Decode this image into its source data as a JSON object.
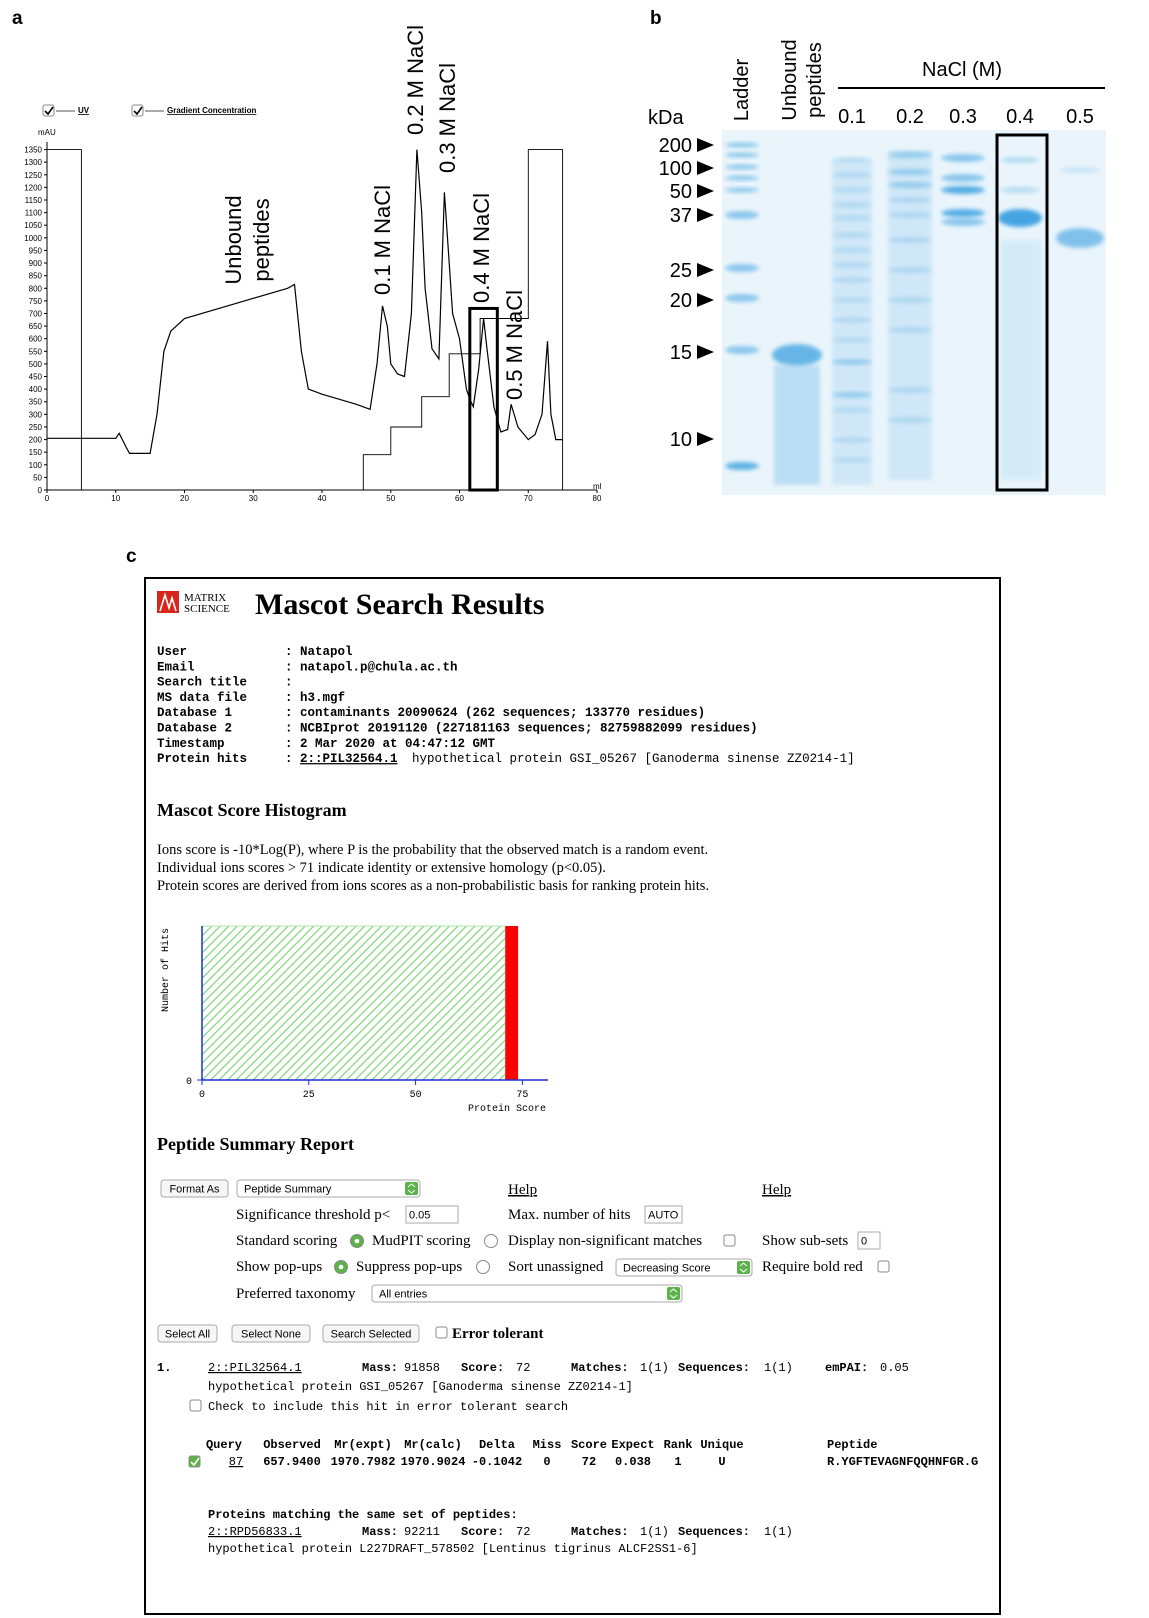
{
  "panel_labels": [
    "a",
    "b",
    "c"
  ],
  "chart_data": [
    {
      "type": "line",
      "y_label": "mAU",
      "x_label": "ml",
      "xlim": [
        0,
        80
      ],
      "ylim": [
        0,
        1380
      ],
      "xticks": [
        0,
        10,
        20,
        30,
        40,
        50,
        60,
        70,
        80
      ],
      "yticks": [
        0,
        50,
        100,
        150,
        200,
        250,
        300,
        350,
        400,
        450,
        500,
        550,
        600,
        650,
        700,
        750,
        800,
        850,
        900,
        950,
        1000,
        1050,
        1100,
        1150,
        1200,
        1250,
        1300,
        1350
      ],
      "series": [
        {
          "name": "UV",
          "color": "#000000",
          "x": [
            0,
            10,
            10.5,
            11.5,
            12,
            15,
            16,
            17,
            18,
            20,
            25,
            30,
            35,
            36,
            37,
            38,
            40,
            45,
            47,
            48,
            48.8,
            49.5,
            50,
            51,
            52,
            53,
            53.8,
            54.5,
            55,
            56,
            57,
            57.8,
            58.5,
            59,
            60,
            61,
            61.5,
            62,
            62.8,
            63.5,
            64,
            65,
            66,
            67,
            67.5,
            68.5,
            70,
            71,
            72,
            72.8,
            73.3,
            74,
            75
          ],
          "values": [
            205,
            205,
            225,
            170,
            145,
            145,
            300,
            550,
            630,
            680,
            720,
            760,
            800,
            815,
            550,
            400,
            380,
            340,
            320,
            500,
            730,
            650,
            500,
            460,
            450,
            700,
            1350,
            1100,
            800,
            560,
            520,
            1180,
            900,
            700,
            600,
            400,
            360,
            330,
            480,
            680,
            560,
            330,
            230,
            240,
            340,
            250,
            200,
            220,
            300,
            590,
            300,
            200,
            200
          ]
        },
        {
          "name": "Gradient Concentration",
          "color": "#000000",
          "x": [
            0,
            5,
            5,
            46,
            46,
            50,
            50,
            54.5,
            54.5,
            58.5,
            58.5,
            63,
            63,
            70,
            70,
            75,
            75
          ],
          "values": [
            1350,
            1350,
            0,
            0,
            140,
            140,
            250,
            250,
            370,
            370,
            540,
            540,
            680,
            680,
            1350,
            1350,
            0
          ]
        }
      ],
      "highlight": {
        "x": [
          61.5,
          65.5
        ],
        "y": [
          0,
          720
        ]
      },
      "annotations": [
        [
          "Unbound",
          "peptides"
        ],
        "0.1 M NaCl",
        "0.2 M NaCl",
        "0.3 M NaCl",
        "0.4 M NaCl",
        "0.5 M NaCl"
      ]
    },
    {
      "type": "histogram",
      "y_label": "Number of Hits",
      "x_label": "Protein Score",
      "xlim": [
        0,
        81
      ],
      "xticks": [
        0,
        25,
        50,
        75
      ],
      "yticks": [
        0
      ],
      "bins": [
        0,
        71,
        74
      ],
      "colors": [
        "#a8eba8",
        "#ff0000"
      ]
    }
  ],
  "gel": {
    "ladder": "Ladder",
    "unbound": [
      "Unbound",
      "peptides"
    ],
    "salt": "NaCl (M)",
    "lanes": [
      "0.1",
      "0.2",
      "0.3",
      "0.4",
      "0.5"
    ],
    "unit": "kDa",
    "markers": [
      "200",
      "100",
      "50",
      "37",
      "25",
      "20",
      "15",
      "10"
    ]
  },
  "mascot": {
    "logo": [
      "MATRIX",
      "SCIENCE"
    ],
    "title": "Mascot Search Results",
    "separator": ":",
    "info": [
      {
        "label": "User",
        "value": "Natapol"
      },
      {
        "label": "Email",
        "value": "natapol.p@chula.ac.th"
      },
      {
        "label": "Search title"
      },
      {
        "label": "MS data file",
        "value": "h3.mgf"
      },
      {
        "label": "Database 1",
        "value": "contaminants 20090624 (262 sequences; 133770 residues)"
      },
      {
        "label": "Database 2",
        "value": "NCBIprot 20191120 (227181163 sequences; 82759882099 residues)"
      },
      {
        "label": "Timestamp",
        "value": "2 Mar 2020 at 04:47:12 GMT"
      },
      {
        "label": "Protein hits",
        "link": "2::PIL32564.1",
        "value": "hypothetical protein GSI_05267 [Ganoderma sinense ZZ0214-1]"
      }
    ],
    "histogram_heading": "Mascot Score Histogram",
    "histogram_text": [
      "Ions score is -10*Log(P), where P is the probability that the observed match is a random event.",
      "Individual ions scores > 71 indicate identity or extensive homology (p<0.05).",
      "Protein scores are derived from ions scores as a non-probabilistic basis for ranking protein hits."
    ],
    "summary_heading": "Peptide Summary Report",
    "form": {
      "format_button": "Format As",
      "format_select": "Peptide Summary",
      "help": [
        "Help",
        "Help"
      ],
      "threshold_label": "Significance threshold p<",
      "threshold": "0.05",
      "max_hits_label": "Max. number of hits",
      "max_hits": "AUTO",
      "standard_scoring": "Standard scoring",
      "mudpit_scoring": "MudPIT scoring",
      "non_significant": "Display non-significant matches",
      "subsets_label": "Show sub-sets",
      "subsets": "0",
      "show_popups": "Show pop-ups",
      "suppress_popups": "Suppress pop-ups",
      "sort_label": "Sort unassigned",
      "sort_select": "Decreasing Score",
      "bold_red": "Require bold red",
      "taxonomy_label": "Preferred taxonomy",
      "taxonomy_select": "All entries",
      "buttons": [
        "Select All",
        "Select None",
        "Search Selected"
      ],
      "error_tolerant": "Error tolerant"
    },
    "hit": {
      "index": "1.",
      "accession": "2::PIL32564.1",
      "fields": [
        [
          "Mass:",
          "91858"
        ],
        [
          "Score:",
          "72"
        ],
        [
          "Matches:",
          "1(1)"
        ],
        [
          "Sequences:",
          "1(1)"
        ],
        [
          "emPAI:",
          "0.05"
        ]
      ],
      "description": "hypothetical protein GSI_05267 [Ganoderma sinense ZZ0214-1]",
      "include": "Check to include this hit in error tolerant search",
      "columns": [
        "Query",
        "Observed",
        "Mr(expt)",
        "Mr(calc)",
        "Delta",
        "Miss",
        "Score",
        "Expect",
        "Rank",
        "Unique",
        "Peptide"
      ],
      "row": [
        "87",
        "657.9400",
        "1970.7982",
        "1970.9024",
        "-0.1042",
        "0",
        "72",
        "0.038",
        "1",
        "U",
        "R.YGFTEVAGNFQQHNFGR.G"
      ]
    },
    "same_set": {
      "heading": "Proteins matching the same set of peptides:",
      "accession": "2::RPD56833.1",
      "fields": [
        [
          "Mass:",
          "92211"
        ],
        [
          "Score:",
          "72"
        ],
        [
          "Matches:",
          "1(1)"
        ],
        [
          "Sequences:",
          "1(1)"
        ]
      ],
      "description": "hypothetical protein L227DRAFT_578502 [Lentinus tigrinus ALCF2SS1-6]"
    }
  }
}
